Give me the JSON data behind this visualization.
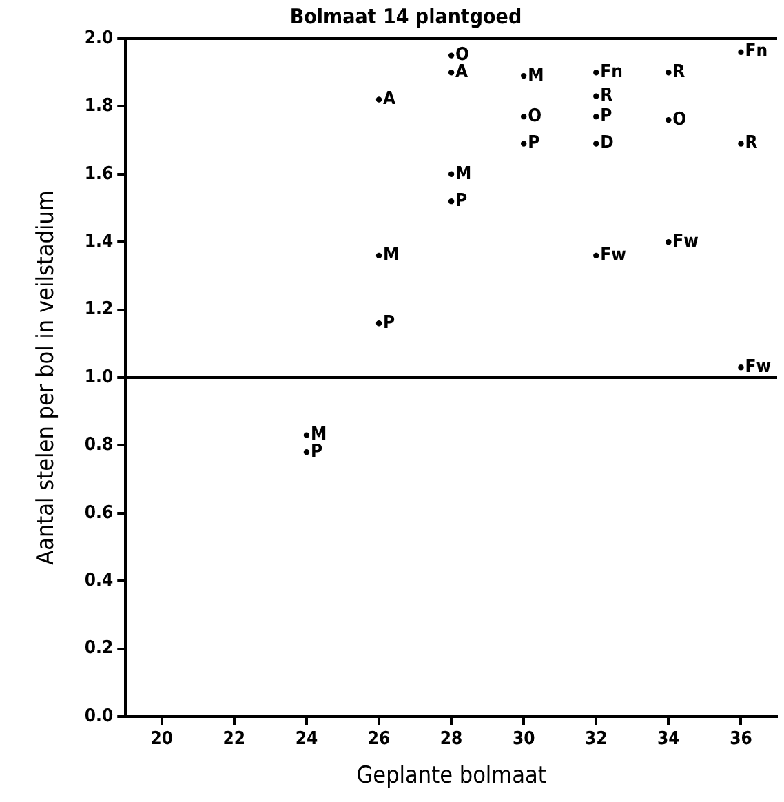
{
  "chart_data": {
    "type": "scatter",
    "title": "Bolmaat 14 plantgoed",
    "xlabel": "Geplante bolmaat",
    "ylabel": "Aantal stelen per bol in veilstadium",
    "xlim": [
      19,
      37
    ],
    "xticks": [
      20,
      22,
      24,
      26,
      28,
      30,
      32,
      34,
      36
    ],
    "ylim": [
      0,
      2
    ],
    "yticks": [
      {
        "value": 0,
        "label": "0.0"
      },
      0.2,
      0.4,
      0.6,
      0.8,
      {
        "value": 1,
        "label": "1.0"
      },
      1.2,
      1.4,
      1.6,
      1.8,
      {
        "value": 2,
        "label": "2.0"
      }
    ],
    "grid": false,
    "legend": false,
    "marker": "circle",
    "ref_lines": [
      {
        "axis": "y",
        "value": 1,
        "label": null
      }
    ],
    "series": [
      {
        "name": "A",
        "color": "#000000",
        "x": [
          26,
          28
        ],
        "values": [
          1.82,
          1.9
        ]
      },
      {
        "name": "M",
        "color": "#000000",
        "x": [
          24,
          26,
          28,
          30
        ],
        "values": [
          0.83,
          1.36,
          1.6,
          1.89
        ]
      },
      {
        "name": "P",
        "color": "#000000",
        "x": [
          24,
          26,
          28,
          30,
          32
        ],
        "values": [
          0.78,
          1.16,
          1.52,
          1.69,
          1.77
        ]
      },
      {
        "name": "O",
        "color": "#000000",
        "x": [
          28,
          30,
          34
        ],
        "values": [
          1.95,
          1.77,
          1.76
        ]
      },
      {
        "name": "R",
        "color": "#000000",
        "x": [
          32,
          34,
          36
        ],
        "values": [
          1.83,
          1.9,
          1.69
        ]
      },
      {
        "name": "Fn",
        "color": "#000000",
        "x": [
          32,
          36
        ],
        "values": [
          1.9,
          1.96
        ]
      },
      {
        "name": "Fw",
        "color": "#000000",
        "x": [
          32,
          34,
          36
        ],
        "values": [
          1.36,
          1.4,
          1.03
        ]
      },
      {
        "name": "D",
        "color": "#000000",
        "x": [
          32
        ],
        "values": [
          1.69
        ]
      }
    ]
  }
}
